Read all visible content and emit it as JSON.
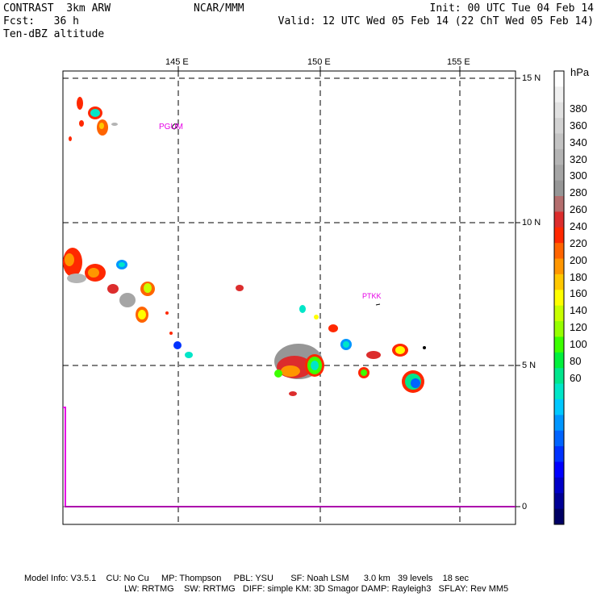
{
  "header": {
    "left1": "CONTRAST  3km ARW",
    "left2": "Fcst:   36 h",
    "left3": "Ten-dBZ altitude",
    "center": "NCAR/MMM",
    "right1": "Init: 00 UTC Tue 04 Feb 14",
    "right2": "Valid: 12 UTC Wed 05 Feb 14 (22 ChT Wed 05 Feb 14)"
  },
  "map": {
    "lon_labels": [
      "145 E",
      "150 E",
      "155 E"
    ],
    "lat_labels": [
      "15 N",
      "10 N",
      "5 N",
      "0"
    ],
    "stations": [
      {
        "id": "PGUM",
        "label": "PGUM"
      },
      {
        "id": "PTKK",
        "label": "PTKK"
      }
    ]
  },
  "colorbar": {
    "unit": "hPa",
    "labels": [
      "380",
      "360",
      "340",
      "320",
      "300",
      "280",
      "260",
      "240",
      "220",
      "200",
      "180",
      "160",
      "140",
      "120",
      "100",
      "80",
      "60"
    ],
    "colors": [
      "#ffffff",
      "#f0f0f0",
      "#e1e1e1",
      "#d2d2d2",
      "#c3c3c3",
      "#b4b4b4",
      "#a5a5a5",
      "#969696",
      "#b46e6e",
      "#dc2d2d",
      "#ff2800",
      "#ff6400",
      "#ff9600",
      "#ffc800",
      "#ffff00",
      "#c8ff00",
      "#96ff00",
      "#3cff00",
      "#00f03c",
      "#00e68c",
      "#00e6c8",
      "#00c8ff",
      "#0096ff",
      "#0064ff",
      "#0032ff",
      "#0000ff",
      "#0000c8",
      "#000096",
      "#000064"
    ]
  },
  "footer": {
    "line1": "Model Info: V3.5.1    CU: No Cu     MP: Thompson     PBL: YSU       SF: Noah LSM      3.0 km   39 levels    18 sec",
    "line2": "LW: RRTMG    SW: RRTMG   DIFF: simple KM: 3D Smagor DAMP: Rayleigh3   SFLAY: Rev MM5"
  }
}
